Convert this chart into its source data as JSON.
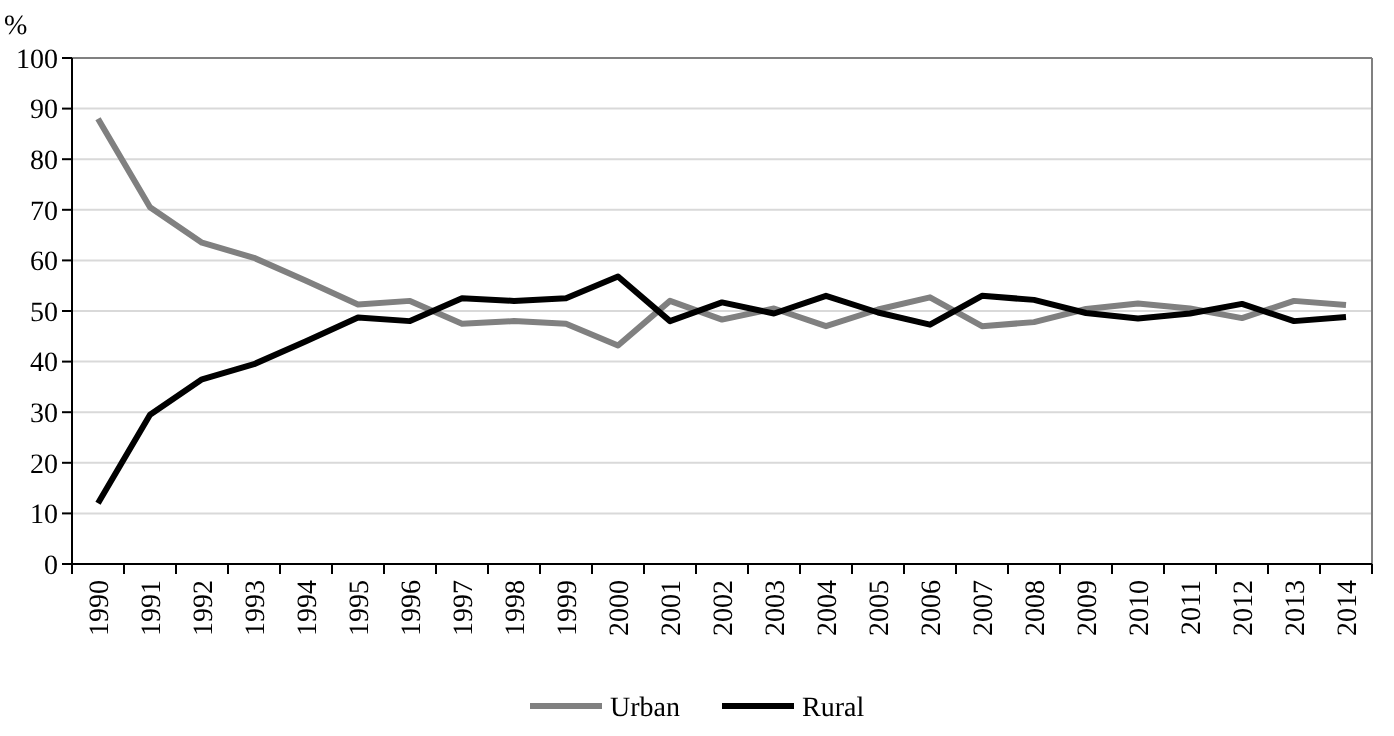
{
  "chart_data": {
    "type": "line",
    "ylabel": "%",
    "categories": [
      "1990",
      "1991",
      "1992",
      "1993",
      "1994",
      "1995",
      "1996",
      "1997",
      "1998",
      "1999",
      "2000",
      "2001",
      "2002",
      "2003",
      "2004",
      "2005",
      "2006",
      "2007",
      "2008",
      "2009",
      "2010",
      "2011",
      "2012",
      "2013",
      "2014"
    ],
    "series": [
      {
        "name": "Urban",
        "color": "#808080",
        "values": [
          88,
          70.5,
          63.5,
          60.5,
          56,
          51.3,
          52,
          47.5,
          48,
          47.5,
          43.2,
          52,
          48.3,
          50.5,
          47,
          50.3,
          52.7,
          47,
          47.8,
          50.4,
          51.5,
          50.5,
          48.6,
          52,
          51.2
        ]
      },
      {
        "name": "Rural",
        "color": "#000000",
        "values": [
          12,
          29.5,
          36.5,
          39.5,
          44,
          48.7,
          48,
          52.5,
          52,
          52.5,
          56.8,
          48,
          51.7,
          49.5,
          53,
          49.7,
          47.3,
          53,
          52.2,
          49.6,
          48.5,
          49.5,
          51.4,
          48,
          48.8
        ]
      }
    ],
    "ylim": [
      0,
      100
    ],
    "yticks": [
      0,
      10,
      20,
      30,
      40,
      50,
      60,
      70,
      80,
      90,
      100
    ],
    "grid": "y",
    "legend": "bottom",
    "marker": "none",
    "line_style": "solid"
  }
}
